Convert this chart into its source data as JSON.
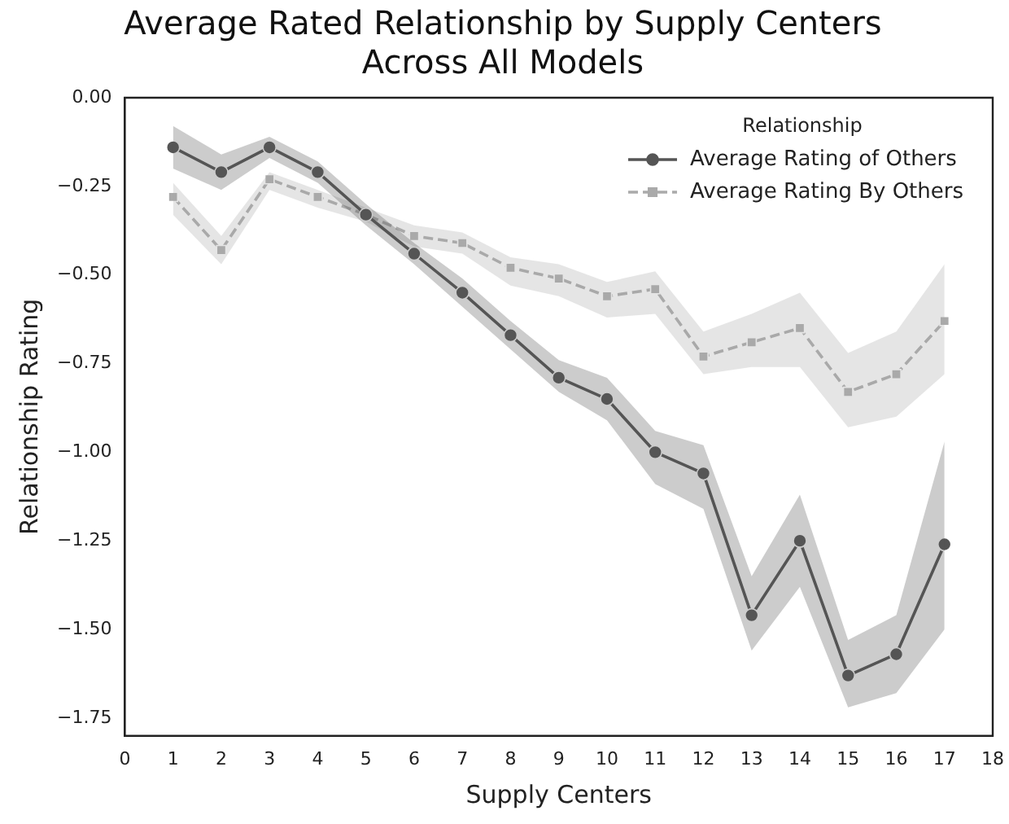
{
  "chart_data": {
    "type": "line",
    "title": "Average Rated Relationship by Supply Centers\nAcross All Models",
    "xlabel": "Supply Centers",
    "ylabel": "Relationship Rating",
    "legend_title": "Relationship",
    "legend": "top right",
    "grid": false,
    "x": [
      1,
      2,
      3,
      4,
      5,
      6,
      7,
      8,
      9,
      10,
      11,
      12,
      13,
      14,
      15,
      16,
      17
    ],
    "xlim": [
      0,
      18
    ],
    "xticks": [
      0,
      1,
      2,
      3,
      4,
      5,
      6,
      7,
      8,
      9,
      10,
      11,
      12,
      13,
      14,
      15,
      16,
      17,
      18
    ],
    "ylim": [
      -1.8,
      0.0
    ],
    "yticks": [
      {
        "value": 0,
        "label": "0.00"
      },
      {
        "value": -0.25,
        "label": "−0.25"
      },
      {
        "value": -0.5,
        "label": "−0.50"
      },
      {
        "value": -0.75,
        "label": "−0.75"
      },
      {
        "value": -1,
        "label": "−1.00"
      },
      {
        "value": -1.25,
        "label": "−1.25"
      },
      {
        "value": -1.5,
        "label": "−1.50"
      },
      {
        "value": -1.75,
        "label": "−1.75"
      }
    ],
    "series": [
      {
        "name": "Average Rating of Others",
        "color": "#555555",
        "marker": "circle",
        "line_style": "solid",
        "values": [
          -0.14,
          -0.21,
          -0.14,
          -0.21,
          -0.33,
          -0.44,
          -0.55,
          -0.67,
          -0.79,
          -0.85,
          -1.0,
          -1.06,
          -1.46,
          -1.25,
          -1.63,
          -1.57,
          -1.26
        ],
        "lower": [
          -0.2,
          -0.26,
          -0.17,
          -0.24,
          -0.36,
          -0.47,
          -0.59,
          -0.71,
          -0.83,
          -0.91,
          -1.09,
          -1.16,
          -1.56,
          -1.38,
          -1.72,
          -1.68,
          -1.5
        ],
        "upper": [
          -0.08,
          -0.16,
          -0.11,
          -0.18,
          -0.3,
          -0.41,
          -0.51,
          -0.63,
          -0.74,
          -0.79,
          -0.94,
          -0.98,
          -1.35,
          -1.12,
          -1.53,
          -1.46,
          -0.97
        ]
      },
      {
        "name": "Average Rating By Others",
        "color": "#aaaaaa",
        "marker": "square",
        "line_style": "dashed",
        "values": [
          -0.28,
          -0.43,
          -0.23,
          -0.28,
          -0.33,
          -0.39,
          -0.41,
          -0.48,
          -0.51,
          -0.56,
          -0.54,
          -0.73,
          -0.69,
          -0.65,
          -0.83,
          -0.78,
          -0.63
        ],
        "lower": [
          -0.33,
          -0.47,
          -0.26,
          -0.31,
          -0.35,
          -0.42,
          -0.44,
          -0.53,
          -0.56,
          -0.62,
          -0.61,
          -0.78,
          -0.76,
          -0.76,
          -0.93,
          -0.9,
          -0.78
        ],
        "upper": [
          -0.24,
          -0.39,
          -0.21,
          -0.26,
          -0.31,
          -0.36,
          -0.38,
          -0.45,
          -0.47,
          -0.52,
          -0.49,
          -0.66,
          -0.61,
          -0.55,
          -0.72,
          -0.66,
          -0.47
        ]
      }
    ]
  }
}
